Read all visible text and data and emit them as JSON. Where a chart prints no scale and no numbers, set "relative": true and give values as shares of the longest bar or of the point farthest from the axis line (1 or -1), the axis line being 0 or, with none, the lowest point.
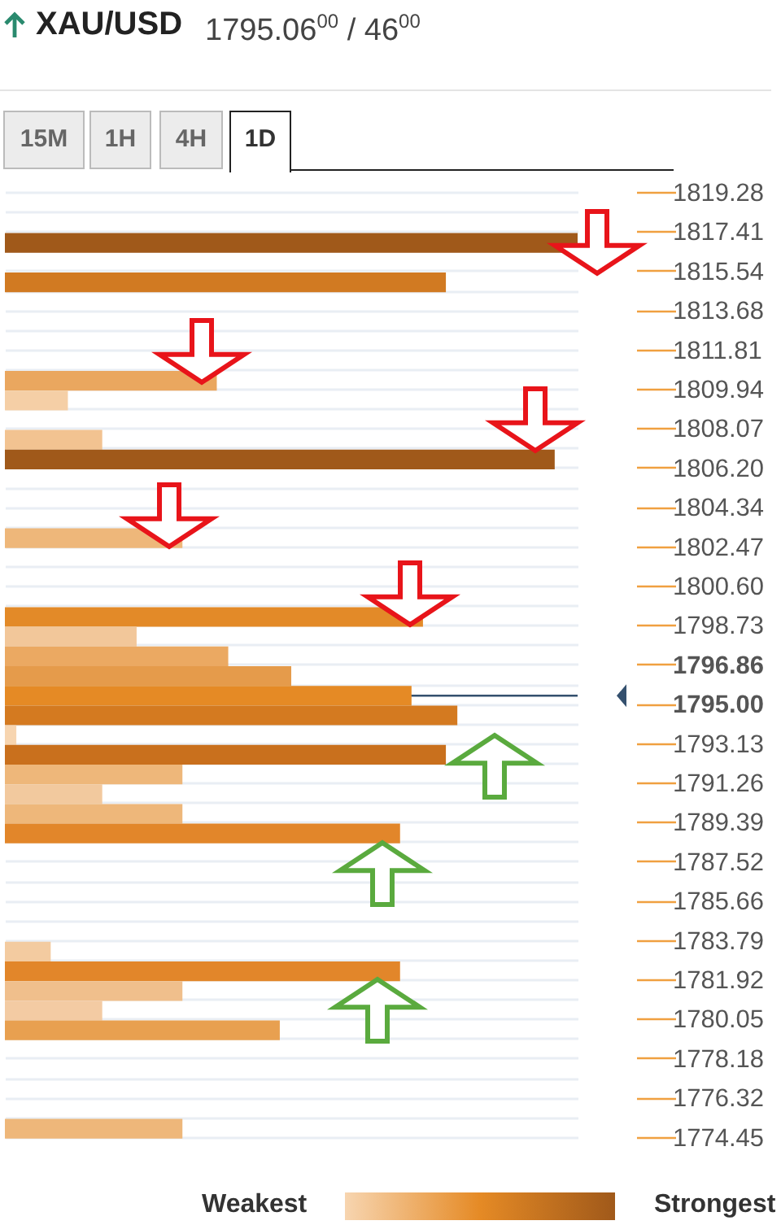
{
  "chart_data": {
    "type": "bar",
    "orientation": "horizontal",
    "relative": true,
    "title": "XAU/USD",
    "subtitle": "1795.06$^{00}$ / 46$^{00}$",
    "categories": [
      "1819.28",
      null,
      "1817.41",
      null,
      "1815.54",
      null,
      "1813.68",
      null,
      "1811.81",
      null,
      "1809.94",
      null,
      "1808.07",
      null,
      "1806.20",
      null,
      "1804.34",
      null,
      "1802.47",
      null,
      "1800.60",
      null,
      "1798.73",
      null,
      "1796.86",
      null,
      "1795.00",
      null,
      "1793.13",
      null,
      "1791.26",
      null,
      "1789.39",
      null,
      "1787.52",
      null,
      "1785.66",
      null,
      "1783.79",
      null,
      "1781.92",
      null,
      "1780.05",
      null,
      "1778.18",
      null,
      "1776.32",
      null,
      "1774.45"
    ],
    "values": [
      null,
      null,
      null,
      1.0,
      null,
      0.77,
      null,
      null,
      null,
      null,
      0.37,
      0.11,
      null,
      0.17,
      0.96,
      null,
      null,
      null,
      0.31,
      null,
      null,
      null,
      0.73,
      0.23,
      0.39,
      0.5,
      0.71,
      0.79,
      0.02,
      0.77,
      0.31,
      0.17,
      0.31,
      0.69,
      null,
      null,
      null,
      null,
      null,
      0.08,
      0.69,
      0.31,
      0.17,
      0.48,
      null,
      null,
      null,
      null,
      0.31
    ],
    "colors": [
      null,
      null,
      null,
      "#a0591a",
      null,
      "#d17a22",
      null,
      null,
      null,
      null,
      "#eaa75f",
      "#f5cfa6",
      null,
      "#f2c391",
      "#a0591a",
      null,
      null,
      null,
      "#eeb77a",
      null,
      null,
      null,
      "#e38a28",
      "#f2c79a",
      "#eba962",
      "#e59b4b",
      "#e58a25",
      "#d47a20",
      "#f7d5b0",
      "#c9701d",
      "#eeb77a",
      "#f2c99e",
      "#eeb77a",
      "#e2862a",
      null,
      null,
      null,
      null,
      null,
      "#f3cba0",
      "#e2862a",
      "#f0bf8c",
      "#f3cba3",
      "#e8a050",
      null,
      null,
      null,
      null,
      "#eeb77a"
    ],
    "grid": true,
    "ref_lines": [
      {
        "axis": "y",
        "value": "1795.00",
        "color": "#34506e"
      }
    ],
    "annotations": [
      "15M",
      "1H",
      "4H",
      "1D",
      "Weakest",
      "Strongest"
    ]
  }
}
